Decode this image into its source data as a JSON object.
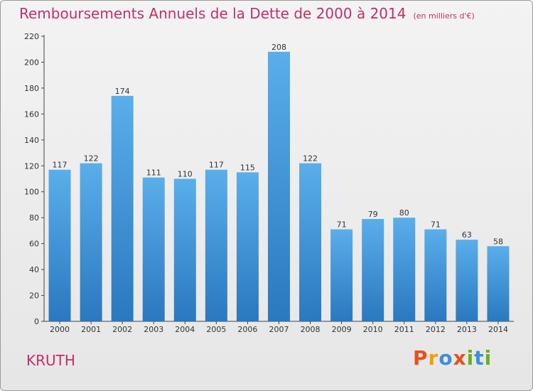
{
  "header": {
    "title": "Remboursements Annuels de la Dette de 2000 à 2014",
    "unit": "(en milliers d'€)"
  },
  "footer": {
    "town": "KRUTH",
    "logo_letters": [
      "P",
      "r",
      "o",
      "x",
      "i",
      "t",
      "i"
    ]
  },
  "colors": {
    "title": "#c0306a",
    "bar_top": "#5aaeea",
    "bar_bottom": "#2a78c0",
    "logo": [
      "#e8501c",
      "#f0a000",
      "#3a90d8",
      "#e8501c",
      "#6ab020",
      "#3a90d8",
      "#6ab020"
    ]
  },
  "chart_data": {
    "type": "bar",
    "categories": [
      "2000",
      "2001",
      "2002",
      "2003",
      "2004",
      "2005",
      "2006",
      "2007",
      "2008",
      "2009",
      "2010",
      "2011",
      "2012",
      "2013",
      "2014"
    ],
    "values": [
      117,
      122,
      174,
      111,
      110,
      117,
      115,
      208,
      122,
      71,
      79,
      80,
      71,
      63,
      58
    ],
    "ylim": [
      0,
      220
    ],
    "yticks": [
      0,
      20,
      40,
      60,
      80,
      100,
      120,
      140,
      160,
      180,
      200,
      220
    ],
    "grid": false
  }
}
